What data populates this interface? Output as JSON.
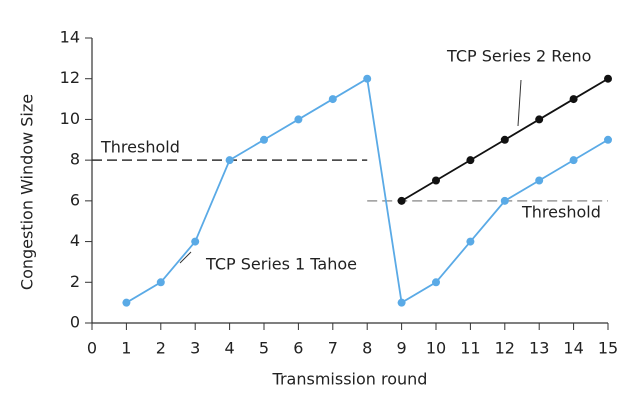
{
  "chart_data": {
    "type": "line",
    "x_label": "Transmission round",
    "y_label": "Congestion Window Size",
    "xlim": [
      0,
      15
    ],
    "xticks": [
      0,
      1,
      2,
      3,
      4,
      5,
      6,
      7,
      8,
      9,
      10,
      11,
      12,
      13,
      14,
      15
    ],
    "ylim": [
      0,
      14
    ],
    "yticks": [
      0,
      2,
      4,
      6,
      8,
      10,
      12,
      14
    ],
    "grid": false,
    "series": [
      {
        "name": "TCP Series 1 Tahoe",
        "color": "#5aaae6",
        "x": [
          1,
          2,
          3,
          4,
          5,
          6,
          7,
          8,
          9,
          10,
          11,
          12,
          13,
          14,
          15
        ],
        "values": [
          1,
          2,
          4,
          8,
          9,
          10,
          11,
          12,
          1,
          2,
          4,
          6,
          7,
          8,
          9
        ]
      },
      {
        "name": "TCP Series 2 Reno",
        "color": "#111111",
        "x": [
          9,
          10,
          11,
          12,
          13,
          14,
          15
        ],
        "values": [
          6,
          7,
          8,
          9,
          10,
          11,
          12
        ]
      }
    ],
    "thresholds": [
      {
        "label": "Threshold",
        "value": 8,
        "x": [
          0,
          8
        ]
      },
      {
        "label": "Threshold",
        "value": 6,
        "x": [
          8,
          15
        ]
      }
    ]
  }
}
